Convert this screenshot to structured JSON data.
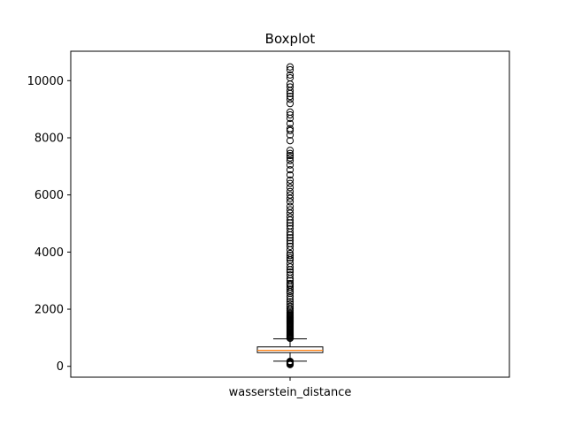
{
  "chart_data": {
    "type": "boxplot",
    "title": "Boxplot",
    "xlabel": "",
    "ylabel": "",
    "categories": [
      "wasserstein_distance"
    ],
    "ylim": [
      -380,
      11030
    ],
    "yticks": [
      0,
      2000,
      4000,
      6000,
      8000,
      10000
    ],
    "grid": false,
    "box": {
      "whisker_low": 180,
      "q1": 480,
      "median": 560,
      "q3": 680,
      "whisker_high": 960,
      "color": "#000000",
      "median_color": "#ff7f0e"
    },
    "outliers_low": [
      60,
      80,
      100,
      120,
      140,
      160,
      175
    ],
    "outliers_high": [
      980,
      1000,
      1030,
      1060,
      1090,
      1120,
      1150,
      1180,
      1210,
      1240,
      1270,
      1300,
      1330,
      1360,
      1390,
      1420,
      1450,
      1480,
      1510,
      1540,
      1570,
      1600,
      1630,
      1660,
      1690,
      1720,
      1750,
      1780,
      1810,
      1850,
      1900,
      1960,
      2020,
      2100,
      2180,
      2260,
      2350,
      2450,
      2560,
      2620,
      2700,
      2780,
      2850,
      2900,
      3000,
      3080,
      3200,
      3300,
      3380,
      3480,
      3600,
      3720,
      3800,
      3880,
      3950,
      4080,
      4200,
      4300,
      4400,
      4500,
      4600,
      4700,
      4820,
      4920,
      5020,
      5120,
      5230,
      5360,
      5480,
      5600,
      5760,
      5880,
      6000,
      6120,
      6260,
      6400,
      6520,
      6700,
      6880,
      7050,
      7200,
      7300,
      7380,
      7450,
      7560,
      7900,
      8100,
      8250,
      8320,
      8500,
      8680,
      8800,
      8900,
      9200,
      9350,
      9450,
      9550,
      9650,
      9780,
      9880,
      10100,
      10200,
      10380,
      10480
    ]
  }
}
